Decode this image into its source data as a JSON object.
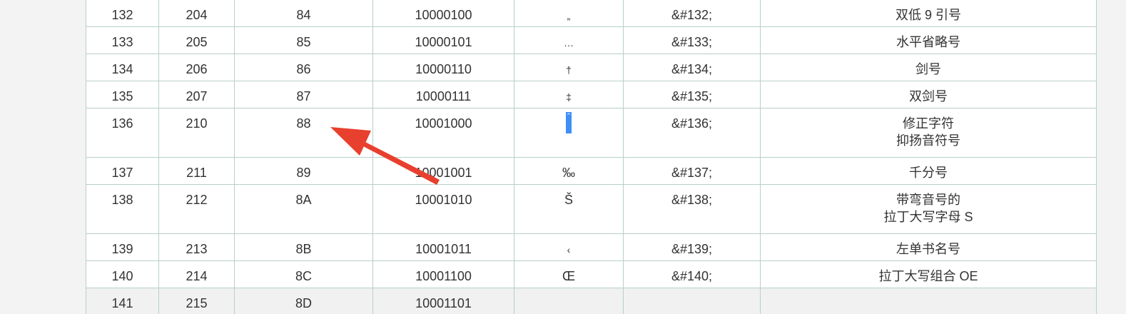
{
  "table": {
    "rows": [
      {
        "oct_dec": "132",
        "oct": "204",
        "hex": "84",
        "bin": "10000100",
        "char": "„",
        "entity": "&#132;",
        "desc": [
          "双低 9 引号"
        ]
      },
      {
        "oct_dec": "133",
        "oct": "205",
        "hex": "85",
        "bin": "10000101",
        "char": "…",
        "entity": "&#133;",
        "desc": [
          "水平省略号"
        ]
      },
      {
        "oct_dec": "134",
        "oct": "206",
        "hex": "86",
        "bin": "10000110",
        "char": "†",
        "entity": "&#134;",
        "desc": [
          "剑号"
        ]
      },
      {
        "oct_dec": "135",
        "oct": "207",
        "hex": "87",
        "bin": "10000111",
        "char": "‡",
        "entity": "&#135;",
        "desc": [
          "双剑号"
        ]
      },
      {
        "oct_dec": "136",
        "oct": "210",
        "hex": "88",
        "bin": "10001000",
        "char": "ˆ",
        "entity": "&#136;",
        "desc": [
          "修正字符",
          "抑扬音符号"
        ]
      },
      {
        "oct_dec": "137",
        "oct": "211",
        "hex": "89",
        "bin": "10001001",
        "char": "‰",
        "entity": "&#137;",
        "desc": [
          "千分号"
        ]
      },
      {
        "oct_dec": "138",
        "oct": "212",
        "hex": "8A",
        "bin": "10001010",
        "char": "Š",
        "entity": "&#138;",
        "desc": [
          "带弯音号的",
          "拉丁大写字母 S"
        ]
      },
      {
        "oct_dec": "139",
        "oct": "213",
        "hex": "8B",
        "bin": "10001011",
        "char": "‹",
        "entity": "&#139;",
        "desc": [
          "左单书名号"
        ]
      },
      {
        "oct_dec": "140",
        "oct": "214",
        "hex": "8C",
        "bin": "10001100",
        "char": "Œ",
        "entity": "&#140;",
        "desc": [
          "拉丁大写组合 OE"
        ]
      },
      {
        "oct_dec": "141",
        "oct": "215",
        "hex": "8D",
        "bin": "10001101",
        "char": "",
        "entity": "",
        "desc": [
          ""
        ]
      }
    ]
  },
  "colors": {
    "border": "#b9cfc9",
    "selection": "#3f8ff7",
    "arrow": "#e8402f",
    "text": "#333333"
  }
}
